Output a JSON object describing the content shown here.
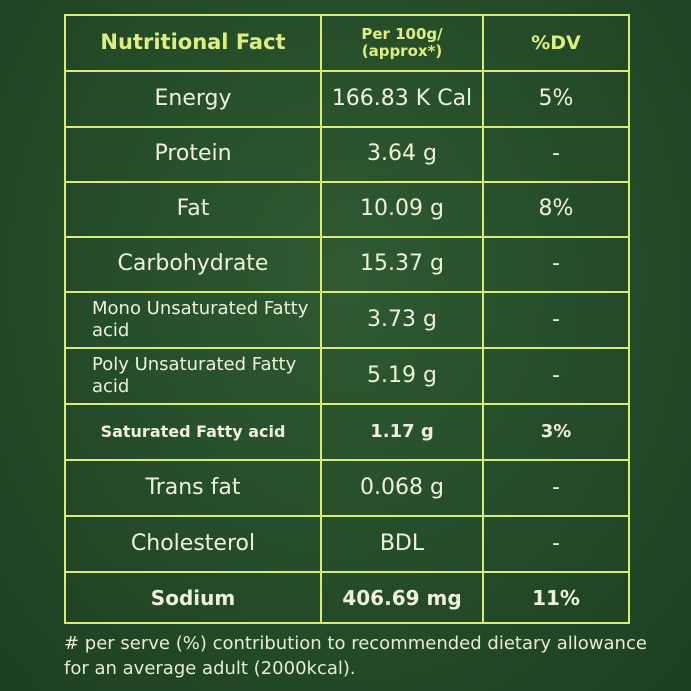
{
  "table": {
    "header": {
      "nutrient": "Nutritional Fact",
      "per100": "Per 100g/ (approx*)",
      "dv": "%DV"
    },
    "rows": [
      {
        "nutrient": "Energy",
        "per100": "166.83 K Cal",
        "dv": "5%"
      },
      {
        "nutrient": "Protein",
        "per100": "3.64 g",
        "dv": "-"
      },
      {
        "nutrient": "Fat",
        "per100": "10.09 g",
        "dv": "8%"
      },
      {
        "nutrient": "Carbohydrate",
        "per100": "15.37 g",
        "dv": "-"
      },
      {
        "nutrient": "Mono Unsaturated Fatty acid",
        "per100": "3.73 g",
        "dv": "-"
      },
      {
        "nutrient": "Poly Unsaturated Fatty acid",
        "per100": "5.19 g",
        "dv": "-"
      },
      {
        "nutrient": "Saturated Fatty acid",
        "per100": "1.17 g",
        "dv": "3%"
      },
      {
        "nutrient": "Trans fat",
        "per100": "0.068 g",
        "dv": "-"
      },
      {
        "nutrient": "Cholesterol",
        "per100": "BDL",
        "dv": "-"
      },
      {
        "nutrient": "Sodium",
        "per100": "406.69 mg",
        "dv": "11%"
      }
    ]
  },
  "footnote": "# per serve (%) contribution to recommended dietary allowance for an average adult (2000kcal)."
}
